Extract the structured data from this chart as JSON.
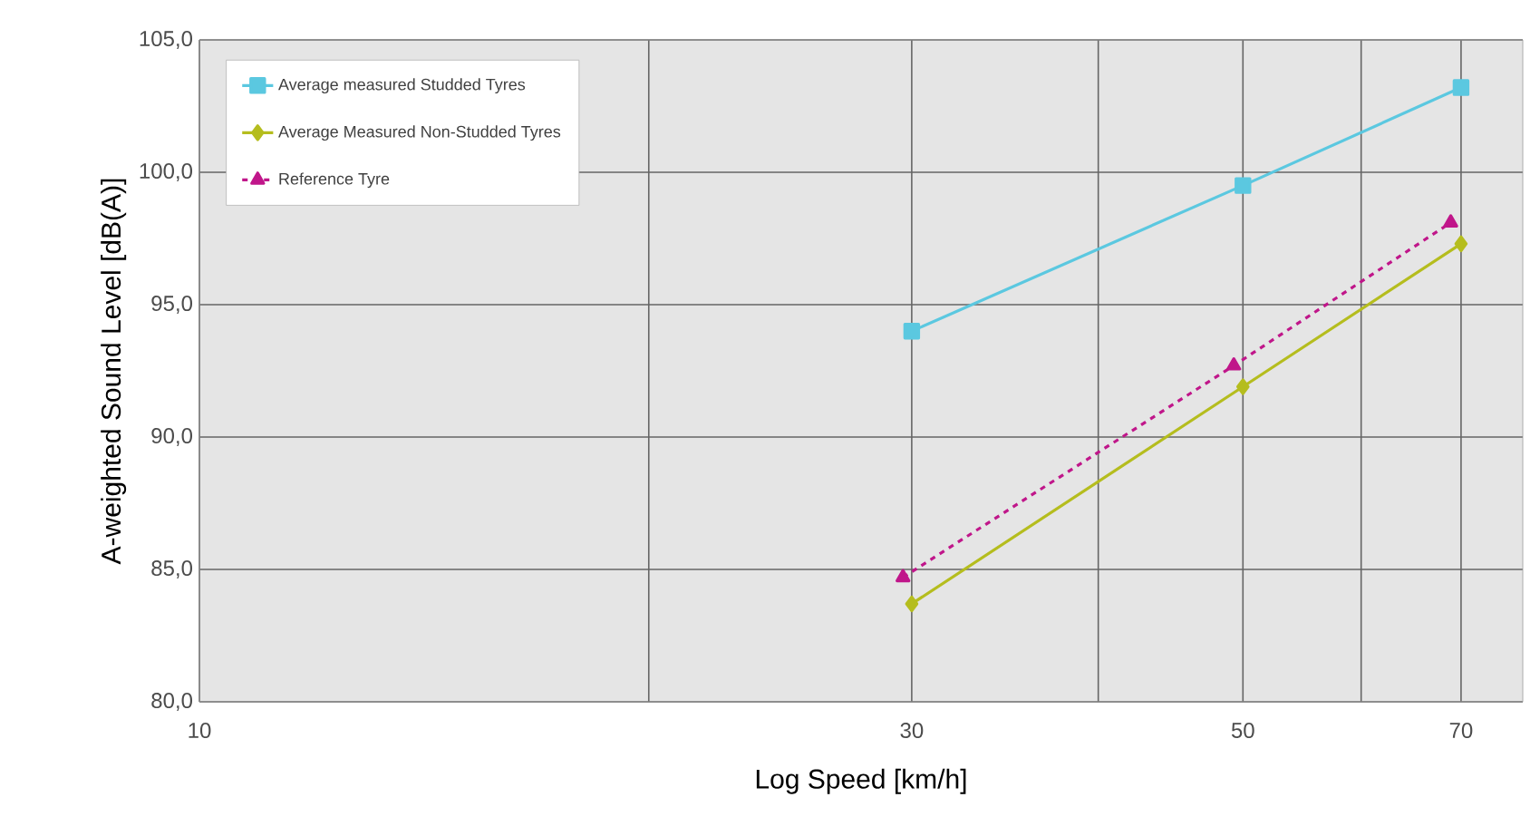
{
  "chart_data": {
    "type": "line",
    "xlabel": "Log Speed [km/h]",
    "ylabel": "A-weighted Sound Level [dB(A)]",
    "log": "x",
    "xlim": [
      10,
      77
    ],
    "xticks": [
      10,
      {
        "value": 20,
        "label": null
      },
      30,
      {
        "value": 40,
        "label": null
      },
      50,
      {
        "value": 60,
        "label": null
      },
      70
    ],
    "ylim": [
      80,
      105
    ],
    "yticks": [
      {
        "value": 80,
        "label": "80,0"
      },
      {
        "value": 85,
        "label": "85,0"
      },
      {
        "value": 90,
        "label": "90,0"
      },
      {
        "value": 95,
        "label": "95,0"
      },
      {
        "value": 100,
        "label": "100,0"
      },
      {
        "value": 105,
        "label": "105,0"
      }
    ],
    "grid": true,
    "legend": "top left",
    "series": [
      {
        "name": "Average measured Studded Tyres",
        "color": "#5bc8e0",
        "marker": "square",
        "line_style": "solid",
        "x": [
          30,
          50,
          70
        ],
        "values": [
          94.0,
          99.5,
          103.2
        ]
      },
      {
        "name": "Average Measured Non-Studded Tyres",
        "color": "#b5bd1e",
        "marker": "diamond",
        "line_style": "solid",
        "x": [
          30,
          50,
          70
        ],
        "values": [
          83.7,
          91.9,
          97.3
        ]
      },
      {
        "name": "Reference Tyre",
        "color": "#c0168a",
        "marker": "triangle",
        "line_style": "dashed",
        "x": [
          29.6,
          49.3,
          68.9
        ],
        "values": [
          84.7,
          92.7,
          98.1
        ]
      }
    ]
  }
}
